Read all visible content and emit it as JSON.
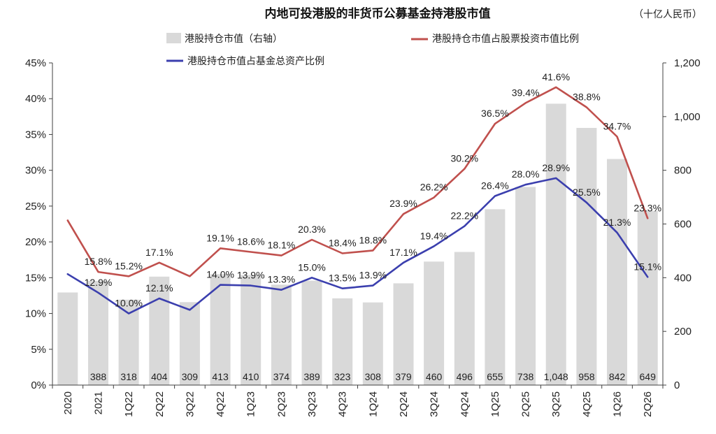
{
  "chart_data": {
    "type": "bar+line",
    "title": "内地可投港股的非货币公募基金持港股市值",
    "unit": "（十亿人民币）",
    "categories": [
      "2020",
      "2021",
      "1Q22",
      "2Q22",
      "3Q22",
      "4Q22",
      "1Q23",
      "2Q23",
      "3Q23",
      "4Q23",
      "1Q24",
      "2Q24",
      "3Q24",
      "4Q24",
      "1Q25",
      "2Q25",
      "3Q25",
      "4Q25",
      "1Q26",
      "2Q26"
    ],
    "bar_series": {
      "name": "港股持仓市值（右轴）",
      "axis": "right",
      "color": "#d9d9d9",
      "values": [
        345,
        388,
        318,
        404,
        309,
        413,
        410,
        374,
        389,
        323,
        308,
        379,
        460,
        496,
        655,
        738,
        1048,
        958,
        842,
        649
      ],
      "labels": [
        "",
        "388",
        "318",
        "404",
        "309",
        "413",
        "410",
        "374",
        "389",
        "323",
        "308",
        "379",
        "460",
        "496",
        "655",
        "738",
        "1,048",
        "958",
        "842",
        "649"
      ]
    },
    "line_series": [
      {
        "name": "港股持仓市值占股票投资市值比例",
        "axis": "left",
        "color": "#c0504d",
        "values": [
          23.0,
          15.8,
          15.2,
          17.1,
          15.2,
          19.1,
          18.6,
          18.1,
          20.3,
          18.4,
          18.8,
          23.9,
          26.2,
          30.2,
          36.5,
          39.4,
          41.6,
          38.8,
          34.7,
          23.3
        ],
        "labels": [
          "",
          "15.8%",
          "15.2%",
          "17.1%",
          "",
          "19.1%",
          "18.6%",
          "18.1%",
          "20.3%",
          "18.4%",
          "18.8%",
          "23.9%",
          "26.2%",
          "30.2%",
          "36.5%",
          "39.4%",
          "41.6%",
          "38.8%",
          "34.7%",
          "23.3%"
        ]
      },
      {
        "name": "港股持仓市值占基金总资产比例",
        "axis": "left",
        "color": "#3b3fae",
        "values": [
          15.5,
          12.9,
          10.0,
          12.1,
          10.5,
          14.0,
          13.9,
          13.3,
          15.0,
          13.5,
          13.9,
          17.1,
          19.4,
          22.2,
          26.4,
          28.0,
          28.9,
          25.5,
          21.3,
          15.1
        ],
        "labels": [
          "",
          "12.9%",
          "10.0%",
          "12.1%",
          "",
          "14.0%",
          "13.9%",
          "13.3%",
          "15.0%",
          "13.5%",
          "13.9%",
          "17.1%",
          "19.4%",
          "22.2%",
          "26.4%",
          "28.0%",
          "28.9%",
          "25.5%",
          "21.3%",
          "15.1%"
        ]
      }
    ],
    "left_axis": {
      "min": 0,
      "max": 45,
      "step": 5,
      "ticks": [
        "0%",
        "5%",
        "10%",
        "15%",
        "20%",
        "25%",
        "30%",
        "35%",
        "40%",
        "45%"
      ]
    },
    "right_axis": {
      "min": 0,
      "max": 1200,
      "step": 200,
      "ticks": [
        "0",
        "200",
        "400",
        "600",
        "800",
        "1,000",
        "1,200"
      ]
    },
    "grid": false,
    "legend_position": "top"
  }
}
